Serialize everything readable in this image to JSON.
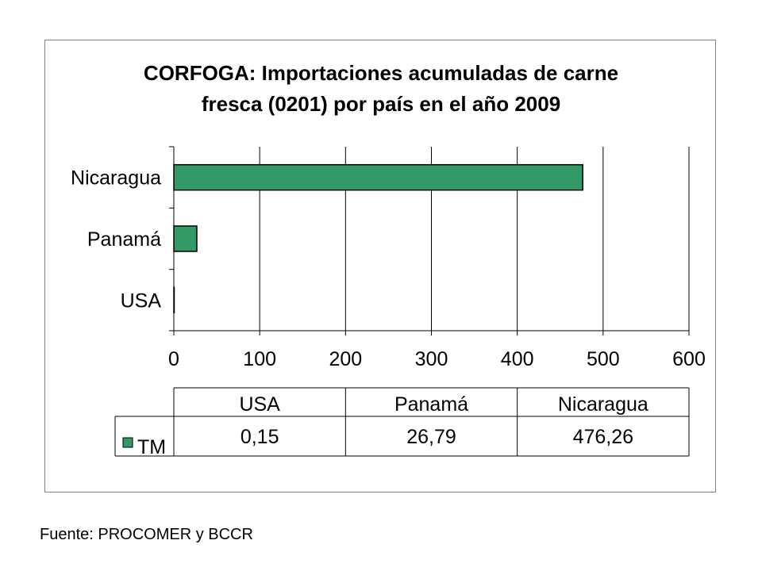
{
  "chart_data": {
    "type": "bar",
    "orientation": "horizontal",
    "title_lines": [
      "CORFOGA: Importaciones acumuladas de carne",
      "fresca (0201) por país en el año 2009"
    ],
    "categories": [
      "USA",
      "Panamá",
      "Nicaragua"
    ],
    "series": [
      {
        "name": "TM",
        "values": [
          0.15,
          26.79,
          476.26
        ],
        "labels": [
          "0,15",
          "26,79",
          "476,26"
        ],
        "color": "#339966"
      }
    ],
    "xlim": [
      0,
      600
    ],
    "x_ticks": [
      0,
      100,
      200,
      300,
      400,
      500,
      600
    ],
    "grid": "vertical",
    "data_table": true
  },
  "source_note": "Fuente: PROCOMER y BCCR"
}
